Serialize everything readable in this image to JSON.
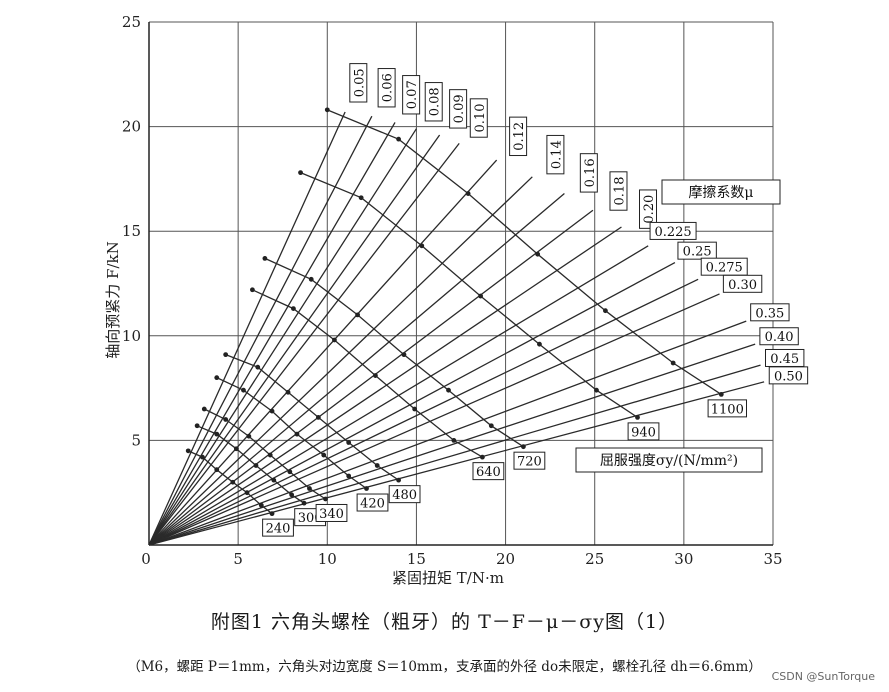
{
  "chart_data": {
    "type": "line",
    "title": "附图1 六角头螺栓（粗牙）的 T－F－μ－σy图（1）",
    "subtitle": "（M6，螺距 P＝1mm，六角头对边宽度 S＝10mm，支承面的外径 do未限定，螺栓孔径 dh＝6.6mm）",
    "xlabel": "紧固扭矩 T/N·m",
    "ylabel": "轴向预紧力 F/kN",
    "xlim": [
      0,
      35
    ],
    "ylim": [
      0,
      25
    ],
    "xticks": [
      "0",
      "5",
      "10",
      "15",
      "20",
      "25",
      "30",
      "35"
    ],
    "yticks": [
      "5",
      "10",
      "15",
      "20",
      "25"
    ],
    "grid": true,
    "mu_legend": "摩擦系数μ",
    "sigma_legend": "屈服强度σy/(N/mm²)",
    "mu_lines": [
      {
        "mu": "0.05",
        "label": "0.05",
        "end": [
          11.0,
          20.7
        ]
      },
      {
        "mu": "0.06",
        "label": "0.06",
        "end": [
          12.5,
          20.5
        ]
      },
      {
        "mu": "0.07",
        "label": "0.07",
        "end": [
          13.8,
          20.2
        ]
      },
      {
        "mu": "0.08",
        "label": "0.08",
        "end": [
          15.0,
          19.9
        ]
      },
      {
        "mu": "0.09",
        "label": "0.09",
        "end": [
          16.3,
          19.6
        ]
      },
      {
        "mu": "0.10",
        "label": "0.10",
        "end": [
          17.4,
          19.2
        ]
      },
      {
        "mu": "0.12",
        "label": "0.12",
        "end": [
          19.5,
          18.4
        ]
      },
      {
        "mu": "0.14",
        "label": "0.14",
        "end": [
          21.5,
          17.6
        ]
      },
      {
        "mu": "0.16",
        "label": "0.16",
        "end": [
          23.3,
          16.8
        ]
      },
      {
        "mu": "0.18",
        "label": "0.18",
        "end": [
          24.9,
          16.0
        ]
      },
      {
        "mu": "0.20",
        "label": "0.20",
        "end": [
          26.5,
          15.2
        ]
      },
      {
        "mu": "0.225",
        "label": "0.225",
        "end": [
          28.0,
          14.3
        ]
      },
      {
        "mu": "0.25",
        "label": "0.25",
        "end": [
          29.5,
          13.5
        ]
      },
      {
        "mu": "0.275",
        "label": "0.275",
        "end": [
          30.8,
          12.7
        ]
      },
      {
        "mu": "0.30",
        "label": "0.30",
        "end": [
          32.0,
          12.0
        ]
      },
      {
        "mu": "0.35",
        "label": "0.35",
        "end": [
          33.5,
          10.7
        ]
      },
      {
        "mu": "0.40",
        "label": "0.40",
        "end": [
          34.0,
          9.6
        ]
      },
      {
        "mu": "0.45",
        "label": "0.45",
        "end": [
          34.3,
          8.6
        ]
      },
      {
        "mu": "0.50",
        "label": "0.50",
        "end": [
          34.5,
          7.8
        ]
      }
    ],
    "sigma_curves": [
      {
        "sigma": "240",
        "label": "240",
        "points": [
          [
            2.2,
            4.5
          ],
          [
            3.0,
            4.2
          ],
          [
            3.8,
            3.6
          ],
          [
            4.7,
            3.0
          ],
          [
            5.5,
            2.5
          ],
          [
            6.3,
            1.9
          ],
          [
            6.9,
            1.5
          ]
        ]
      },
      {
        "sigma": "300",
        "label": "300",
        "points": [
          [
            2.7,
            5.7
          ],
          [
            3.8,
            5.3
          ],
          [
            4.9,
            4.6
          ],
          [
            6.0,
            3.8
          ],
          [
            7.0,
            3.1
          ],
          [
            8.0,
            2.4
          ],
          [
            8.7,
            2.0
          ]
        ]
      },
      {
        "sigma": "340",
        "label": "340",
        "points": [
          [
            3.1,
            6.5
          ],
          [
            4.3,
            6.0
          ],
          [
            5.6,
            5.2
          ],
          [
            6.8,
            4.3
          ],
          [
            7.9,
            3.5
          ],
          [
            9.0,
            2.7
          ],
          [
            9.9,
            2.2
          ]
        ]
      },
      {
        "sigma": "420",
        "label": "420",
        "points": [
          [
            3.8,
            8.0
          ],
          [
            5.3,
            7.4
          ],
          [
            6.9,
            6.4
          ],
          [
            8.3,
            5.3
          ],
          [
            9.8,
            4.3
          ],
          [
            11.2,
            3.3
          ],
          [
            12.2,
            2.7
          ]
        ]
      },
      {
        "sigma": "480",
        "label": "480",
        "points": [
          [
            4.3,
            9.1
          ],
          [
            6.1,
            8.5
          ],
          [
            7.8,
            7.3
          ],
          [
            9.5,
            6.1
          ],
          [
            11.2,
            4.9
          ],
          [
            12.8,
            3.8
          ],
          [
            14.0,
            3.1
          ]
        ]
      },
      {
        "sigma": "640",
        "label": "640",
        "points": [
          [
            5.8,
            12.2
          ],
          [
            8.1,
            11.3
          ],
          [
            10.4,
            9.8
          ],
          [
            12.7,
            8.1
          ],
          [
            14.9,
            6.5
          ],
          [
            17.1,
            5.0
          ],
          [
            18.7,
            4.2
          ]
        ]
      },
      {
        "sigma": "720",
        "label": "720",
        "points": [
          [
            6.5,
            13.7
          ],
          [
            9.1,
            12.7
          ],
          [
            11.7,
            11.0
          ],
          [
            14.3,
            9.1
          ],
          [
            16.8,
            7.4
          ],
          [
            19.2,
            5.7
          ],
          [
            21.0,
            4.7
          ]
        ]
      },
      {
        "sigma": "940",
        "label": "940",
        "points": [
          [
            8.5,
            17.8
          ],
          [
            11.9,
            16.6
          ],
          [
            15.3,
            14.3
          ],
          [
            18.6,
            11.9
          ],
          [
            21.9,
            9.6
          ],
          [
            25.1,
            7.4
          ],
          [
            27.4,
            6.1
          ]
        ]
      },
      {
        "sigma": "1100",
        "label": "1100",
        "points": [
          [
            10.0,
            20.8
          ],
          [
            14.0,
            19.4
          ],
          [
            17.9,
            16.8
          ],
          [
            21.8,
            13.9
          ],
          [
            25.6,
            11.2
          ],
          [
            29.4,
            8.7
          ],
          [
            32.1,
            7.2
          ]
        ]
      }
    ]
  }
}
